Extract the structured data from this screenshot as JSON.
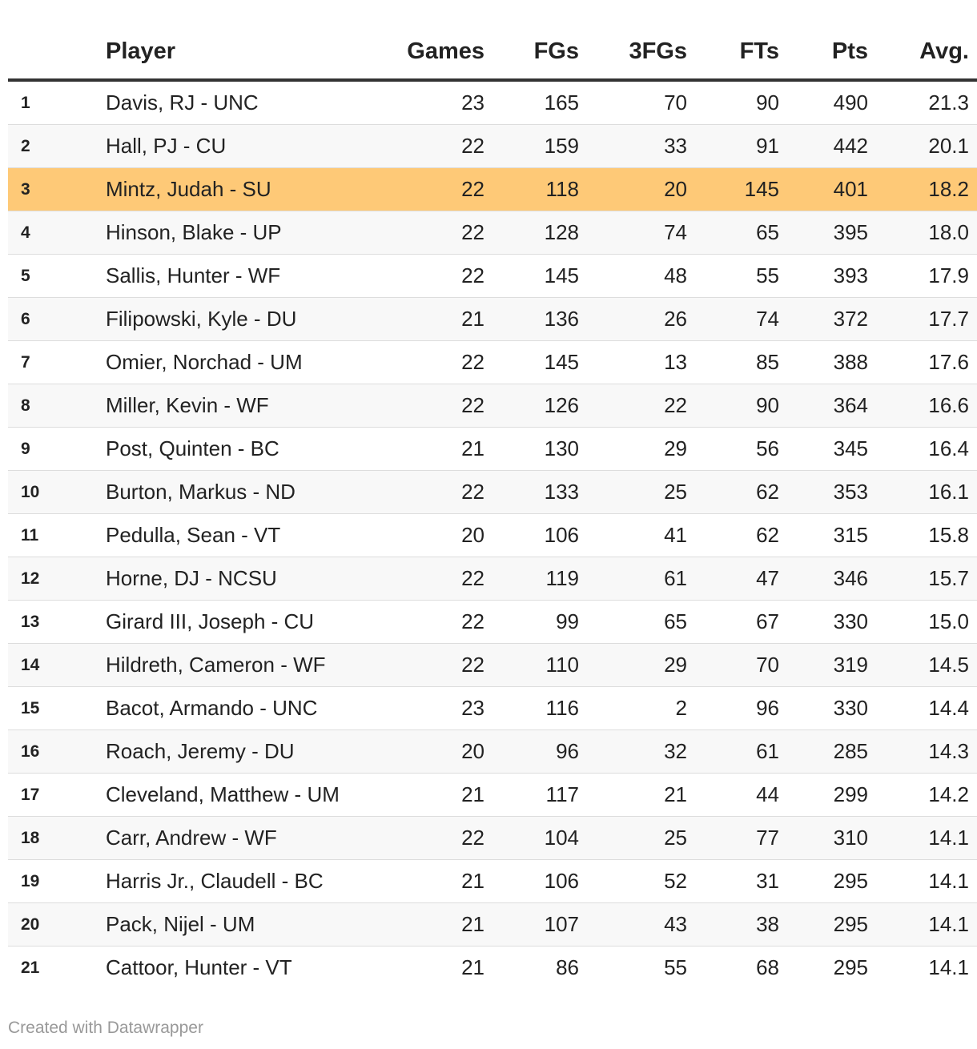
{
  "chart_data": {
    "type": "table",
    "columns": [
      "",
      "Player",
      "Games",
      "FGs",
      "3FGs",
      "FTs",
      "Pts",
      "Avg."
    ],
    "highlight_row": 3,
    "colors": {
      "highlight": "#fec977",
      "stripe": "#f8f8f8",
      "header_rule": "#333333",
      "footer_text": "#999999"
    },
    "rows": [
      [
        "1",
        "Davis, RJ - UNC",
        "23",
        "165",
        "70",
        "90",
        "490",
        "21.3"
      ],
      [
        "2",
        "Hall, PJ - CU",
        "22",
        "159",
        "33",
        "91",
        "442",
        "20.1"
      ],
      [
        "3",
        "Mintz, Judah - SU",
        "22",
        "118",
        "20",
        "145",
        "401",
        "18.2"
      ],
      [
        "4",
        "Hinson, Blake - UP",
        "22",
        "128",
        "74",
        "65",
        "395",
        "18.0"
      ],
      [
        "5",
        "Sallis, Hunter - WF",
        "22",
        "145",
        "48",
        "55",
        "393",
        "17.9"
      ],
      [
        "6",
        "Filipowski, Kyle - DU",
        "21",
        "136",
        "26",
        "74",
        "372",
        "17.7"
      ],
      [
        "7",
        "Omier, Norchad - UM",
        "22",
        "145",
        "13",
        "85",
        "388",
        "17.6"
      ],
      [
        "8",
        "Miller, Kevin - WF",
        "22",
        "126",
        "22",
        "90",
        "364",
        "16.6"
      ],
      [
        "9",
        "Post, Quinten - BC",
        "21",
        "130",
        "29",
        "56",
        "345",
        "16.4"
      ],
      [
        "10",
        "Burton, Markus - ND",
        "22",
        "133",
        "25",
        "62",
        "353",
        "16.1"
      ],
      [
        "11",
        "Pedulla, Sean - VT",
        "20",
        "106",
        "41",
        "62",
        "315",
        "15.8"
      ],
      [
        "12",
        "Horne, DJ - NCSU",
        "22",
        "119",
        "61",
        "47",
        "346",
        "15.7"
      ],
      [
        "13",
        "Girard III, Joseph - CU",
        "22",
        "99",
        "65",
        "67",
        "330",
        "15.0"
      ],
      [
        "14",
        "Hildreth, Cameron - WF",
        "22",
        "110",
        "29",
        "70",
        "319",
        "14.5"
      ],
      [
        "15",
        "Bacot, Armando - UNC",
        "23",
        "116",
        "2",
        "96",
        "330",
        "14.4"
      ],
      [
        "16",
        "Roach, Jeremy - DU",
        "20",
        "96",
        "32",
        "61",
        "285",
        "14.3"
      ],
      [
        "17",
        "Cleveland, Matthew - UM",
        "21",
        "117",
        "21",
        "44",
        "299",
        "14.2"
      ],
      [
        "18",
        "Carr, Andrew - WF",
        "22",
        "104",
        "25",
        "77",
        "310",
        "14.1"
      ],
      [
        "19",
        "Harris Jr., Claudell - BC",
        "21",
        "106",
        "52",
        "31",
        "295",
        "14.1"
      ],
      [
        "20",
        "Pack, Nijel - UM",
        "21",
        "107",
        "43",
        "38",
        "295",
        "14.1"
      ],
      [
        "21",
        "Cattoor, Hunter - VT",
        "21",
        "86",
        "55",
        "68",
        "295",
        "14.1"
      ]
    ]
  },
  "footer": {
    "credit": "Created with Datawrapper"
  }
}
